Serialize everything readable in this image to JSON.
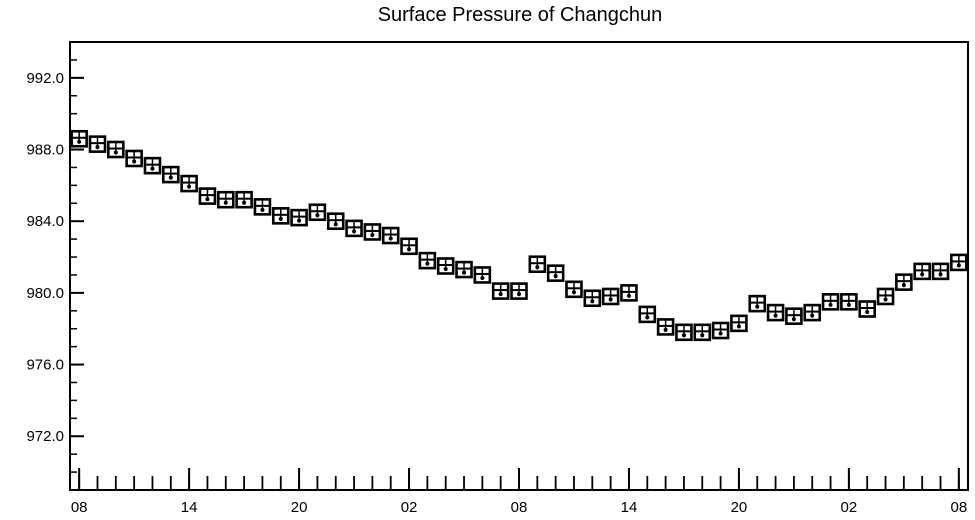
{
  "chart_data": {
    "type": "scatter",
    "title": "Surface Pressure of Changchun",
    "xlabel": "",
    "ylabel": "",
    "ylim": [
      969.0,
      994.0
    ],
    "xlim": [
      -0.5,
      48.5
    ],
    "grid": false,
    "yticks": [
      992.0,
      988.0,
      984.0,
      980.0,
      976.0,
      972.0
    ],
    "ytick_labels": [
      "992.0",
      "988.0",
      "984.0",
      "980.0",
      "976.0",
      "972.0"
    ],
    "xticks": [
      0,
      6,
      12,
      18,
      24,
      30,
      36,
      42,
      48
    ],
    "xtick_labels": [
      "08",
      "14",
      "20",
      "02",
      "08",
      "14",
      "20",
      "02",
      "08"
    ],
    "series": [
      {
        "marker": "station-model-box",
        "x": [
          0,
          1,
          2,
          3,
          4,
          5,
          6,
          7,
          8,
          9,
          10,
          11,
          12,
          13,
          14,
          15,
          16,
          17,
          18,
          19,
          20,
          21,
          22,
          23,
          24,
          25,
          26,
          27,
          28,
          29,
          30,
          31,
          32,
          33,
          34,
          35,
          36,
          37,
          38,
          39,
          40,
          41,
          42,
          43,
          44,
          45,
          46,
          47,
          48
        ],
        "values": [
          988.6,
          988.3,
          988.0,
          987.5,
          987.1,
          986.6,
          986.1,
          985.4,
          985.2,
          985.2,
          984.8,
          984.3,
          984.2,
          984.5,
          984.0,
          983.6,
          983.4,
          983.2,
          982.6,
          981.8,
          981.5,
          981.3,
          981.0,
          980.1,
          980.1,
          981.6,
          981.1,
          980.2,
          979.7,
          979.8,
          980.0,
          978.8,
          978.1,
          977.8,
          977.8,
          977.9,
          978.3,
          979.4,
          978.9,
          978.7,
          978.9,
          979.5,
          979.5,
          979.1,
          979.8,
          980.6,
          981.2,
          981.2,
          981.7
        ]
      }
    ]
  }
}
